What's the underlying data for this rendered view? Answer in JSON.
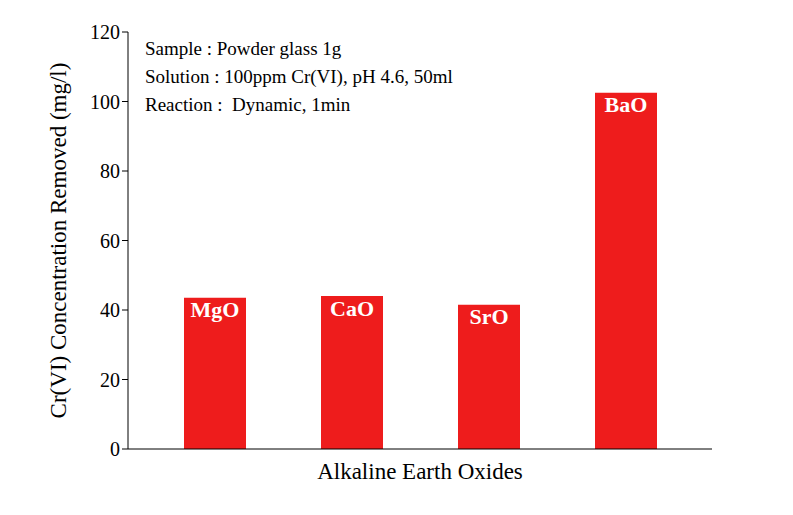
{
  "chart_data": {
    "type": "bar",
    "categories": [
      "MgO",
      "CaO",
      "SrO",
      "BaO"
    ],
    "values": [
      43.5,
      44,
      41.5,
      102.5
    ],
    "color": "#ee1c1c",
    "ylim": [
      0,
      120
    ],
    "yticks": [
      0,
      20,
      40,
      60,
      80,
      100,
      120
    ],
    "y_label": "Cr(VI) Concentration Removed (mg/l)",
    "x_label": "Alkaline Earth Oxides",
    "annotations": [
      "Sample : Powder glass 1g",
      "Solution : 100ppm Cr(VI), pH 4.6, 50ml",
      "Reaction :  Dynamic, 1min"
    ],
    "tick_labels": "y",
    "grid": false
  }
}
